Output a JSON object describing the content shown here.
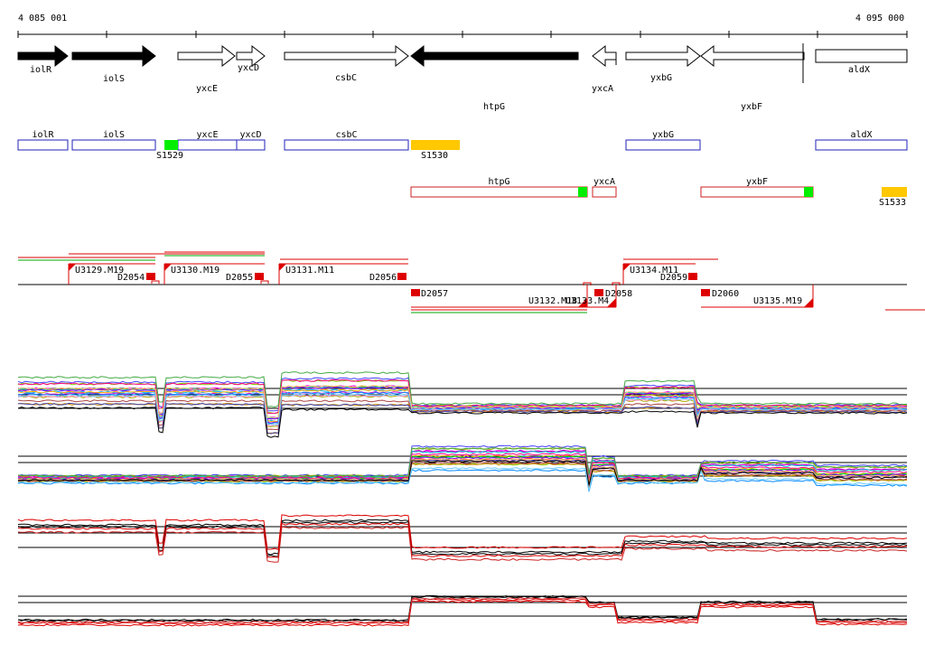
{
  "ruler": {
    "start_label": "4 085 001",
    "end_label": "4 095 000"
  },
  "genes": [
    {
      "name": "iolR",
      "dir": "right",
      "fill": "#000000"
    },
    {
      "name": "iolS",
      "dir": "right",
      "fill": "#000000"
    },
    {
      "name": "yxcE",
      "dir": "right",
      "fill": "#ffffff"
    },
    {
      "name": "yxcD",
      "dir": "right",
      "fill": "#ffffff"
    },
    {
      "name": "csbC",
      "dir": "right",
      "fill": "#ffffff"
    },
    {
      "name": "htpG",
      "dir": "left",
      "fill": "#000000"
    },
    {
      "name": "yxcA",
      "dir": "left",
      "fill": "#ffffff"
    },
    {
      "name": "yxbG",
      "dir": "right",
      "fill": "#ffffff"
    },
    {
      "name": "yxbF",
      "dir": "left",
      "fill": "#ffffff"
    },
    {
      "name": "aldX",
      "dir": "right",
      "fill": "#ffffff"
    }
  ],
  "plus_boxes": [
    "iolR",
    "iolS",
    "yxcE",
    "yxcD",
    "csbC",
    "yxbG",
    "aldX"
  ],
  "minus_boxes": [
    "htpG",
    "yxcA",
    "yxbF"
  ],
  "regulatory_marks": [
    {
      "label": "S1529",
      "color": "#00ee00"
    },
    {
      "label": "S1530",
      "color": "#ffc800"
    },
    {
      "label": "S1533",
      "color": "#ffc800"
    }
  ],
  "transcription_upper": [
    "U3129.M19",
    "U3130.M19",
    "U3131.M11",
    "U3134.M11"
  ],
  "transcription_lower": [
    "U3132.M18",
    "U3133.M4",
    "U3135.M19"
  ],
  "downshifts": [
    "D2054",
    "D2055",
    "D2056",
    "D2057",
    "D2058",
    "D2059",
    "D2060"
  ],
  "colors": {
    "plus_box": "#2222bb",
    "minus_box": "#cc2222",
    "mark_red": "#ff0000",
    "green_line": "#00aa00",
    "red_line": "#dd0000"
  }
}
